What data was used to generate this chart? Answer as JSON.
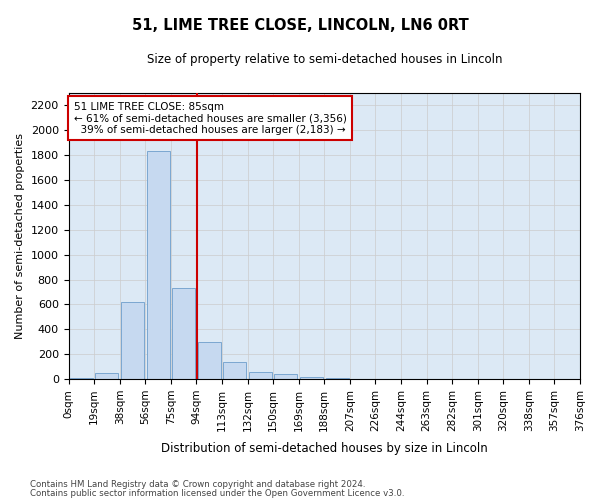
{
  "title": "51, LIME TREE CLOSE, LINCOLN, LN6 0RT",
  "subtitle": "Size of property relative to semi-detached houses in Lincoln",
  "xlabel": "Distribution of semi-detached houses by size in Lincoln",
  "ylabel": "Number of semi-detached properties",
  "property_label": "51 LIME TREE CLOSE: 85sqm",
  "pct_smaller": 61,
  "pct_larger": 39,
  "count_smaller": 3356,
  "count_larger": 2183,
  "bin_labels": [
    "0sqm",
    "19sqm",
    "38sqm",
    "56sqm",
    "75sqm",
    "94sqm",
    "113sqm",
    "132sqm",
    "150sqm",
    "169sqm",
    "188sqm",
    "207sqm",
    "226sqm",
    "244sqm",
    "263sqm",
    "282sqm",
    "301sqm",
    "320sqm",
    "338sqm",
    "357sqm",
    "376sqm"
  ],
  "bar_values": [
    10,
    50,
    620,
    1830,
    730,
    300,
    140,
    60,
    40,
    15,
    5,
    2,
    1,
    1,
    0,
    0,
    0,
    0,
    0,
    0
  ],
  "bar_color": "#c6d9f0",
  "bar_edge_color": "#7ba7d0",
  "annotation_box_color": "#cc0000",
  "ylim": [
    0,
    2300
  ],
  "yticks": [
    0,
    200,
    400,
    600,
    800,
    1000,
    1200,
    1400,
    1600,
    1800,
    2000,
    2200
  ],
  "footer1": "Contains HM Land Registry data © Crown copyright and database right 2024.",
  "footer2": "Contains public sector information licensed under the Open Government Licence v3.0.",
  "bg_color": "#ffffff",
  "grid_color": "#cccccc",
  "ax_bg_color": "#dce9f5",
  "vline_color": "#cc0000",
  "vline_pos": 4.526
}
